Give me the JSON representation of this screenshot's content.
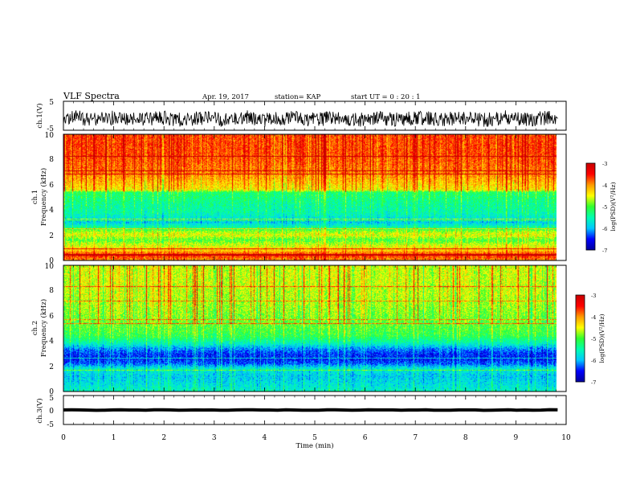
{
  "header": {
    "title": "VLF Spectra",
    "date": "Apr. 19, 2017",
    "station": "station= KAP",
    "start": "start  UT =   0 : 20 : 1"
  },
  "chart_data": [
    {
      "type": "line",
      "panel": "ch1-waveform",
      "ylabel": "ch.1(V)",
      "ylim": [
        -5,
        5
      ],
      "yticks": [
        "5",
        "-5"
      ],
      "xlim": [
        0,
        10
      ],
      "data_extent_min": [
        0,
        9.83
      ],
      "note_values": "noisy voltage trace centered near -1 V ranging roughly -3.5 to 1.5 V",
      "center": -1,
      "amplitude": 2.5
    },
    {
      "type": "heatmap",
      "panel": "ch1-spectrogram",
      "ylabel": "ch.1\nFrequency (kHz)",
      "ylim": [
        0,
        10
      ],
      "yticks": [
        "0",
        "2",
        "4",
        "6",
        "8",
        "10"
      ],
      "xlim": [
        0,
        10
      ],
      "data_extent_min": [
        0,
        9.83
      ],
      "value_label": "log(PSD)(V²/Hz)",
      "colorbar_range": [
        -7,
        -3
      ],
      "colorbar_ticks": [
        "-3",
        "-4",
        "-5",
        "-6",
        "-7"
      ],
      "freq_profile_log_psd": [
        [
          0.0,
          -4.0
        ],
        [
          0.4,
          -3.6
        ],
        [
          0.8,
          -4.3
        ],
        [
          1.2,
          -4.6
        ],
        [
          1.6,
          -5.0
        ],
        [
          2.0,
          -4.5
        ],
        [
          2.3,
          -4.8
        ],
        [
          2.6,
          -5.4
        ],
        [
          3.0,
          -5.9
        ],
        [
          3.4,
          -5.7
        ],
        [
          3.8,
          -5.5
        ],
        [
          4.5,
          -5.4
        ],
        [
          5.4,
          -5.2
        ],
        [
          5.6,
          -4.4
        ],
        [
          7.0,
          -3.9
        ],
        [
          8.5,
          -3.7
        ],
        [
          10.0,
          -3.7
        ]
      ]
    },
    {
      "type": "heatmap",
      "panel": "ch2-spectrogram",
      "ylabel": "ch.2\nFrequency (kHz)",
      "ylim": [
        0,
        10
      ],
      "yticks": [
        "0",
        "2",
        "4",
        "6",
        "8",
        "10"
      ],
      "xlim": [
        0,
        10
      ],
      "data_extent_min": [
        0,
        9.83
      ],
      "value_label": "log(PSD)(V²/Hz)",
      "colorbar_range": [
        -7,
        -3
      ],
      "colorbar_ticks": [
        "-3",
        "-4",
        "-5",
        "-6",
        "-7"
      ],
      "freq_profile_log_psd": [
        [
          0.0,
          -5.6
        ],
        [
          0.6,
          -5.8
        ],
        [
          1.2,
          -5.9
        ],
        [
          1.8,
          -5.7
        ],
        [
          2.2,
          -6.3
        ],
        [
          2.6,
          -6.5
        ],
        [
          3.0,
          -6.4
        ],
        [
          3.4,
          -6.1
        ],
        [
          3.8,
          -5.6
        ],
        [
          4.4,
          -5.1
        ],
        [
          5.5,
          -4.9
        ],
        [
          7.0,
          -4.7
        ],
        [
          8.5,
          -4.6
        ],
        [
          10.0,
          -4.6
        ]
      ]
    },
    {
      "type": "line",
      "panel": "ch3-waveform",
      "ylabel": "ch.3(V)",
      "ylim": [
        -5,
        5
      ],
      "yticks": [
        "5",
        "0",
        "-5"
      ],
      "xlim": [
        0,
        10
      ],
      "xlabel": "Time  (min)",
      "xticks": [
        "0",
        "1",
        "2",
        "3",
        "4",
        "5",
        "6",
        "7",
        "8",
        "9",
        "10"
      ],
      "data_extent_min": [
        0,
        9.83
      ],
      "center": 0,
      "amplitude": 0.4
    }
  ],
  "colors": {
    "colormap": [
      "#00009a",
      "#0000ff",
      "#00c8ff",
      "#00ffb0",
      "#30ff30",
      "#ffff00",
      "#ff9a00",
      "#ff0000",
      "#c80000"
    ]
  }
}
